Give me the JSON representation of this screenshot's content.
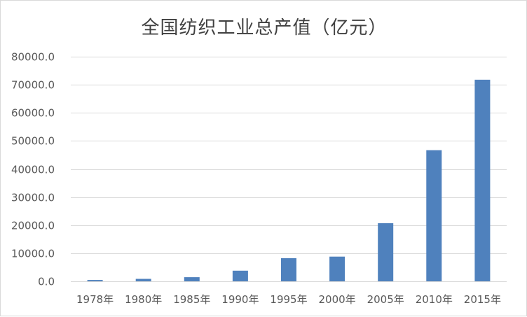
{
  "chart_data": {
    "type": "bar",
    "title": "全国纺织工业总产值（亿元）",
    "categories": [
      "1978年",
      "1980年",
      "1985年",
      "1990年",
      "1995年",
      "2000年",
      "2005年",
      "2010年",
      "2015年"
    ],
    "values": [
      470,
      870,
      1460,
      3800,
      8250,
      8800,
      20700,
      46700,
      71800
    ],
    "ylim": [
      0,
      80000
    ],
    "yticks": [
      "0.0",
      "10000.0",
      "20000.0",
      "30000.0",
      "40000.0",
      "50000.0",
      "60000.0",
      "70000.0",
      "80000.0"
    ],
    "grid": true,
    "legend": "none",
    "bar_color": "#4f81bd",
    "grid_color": "#d9d9d9"
  }
}
